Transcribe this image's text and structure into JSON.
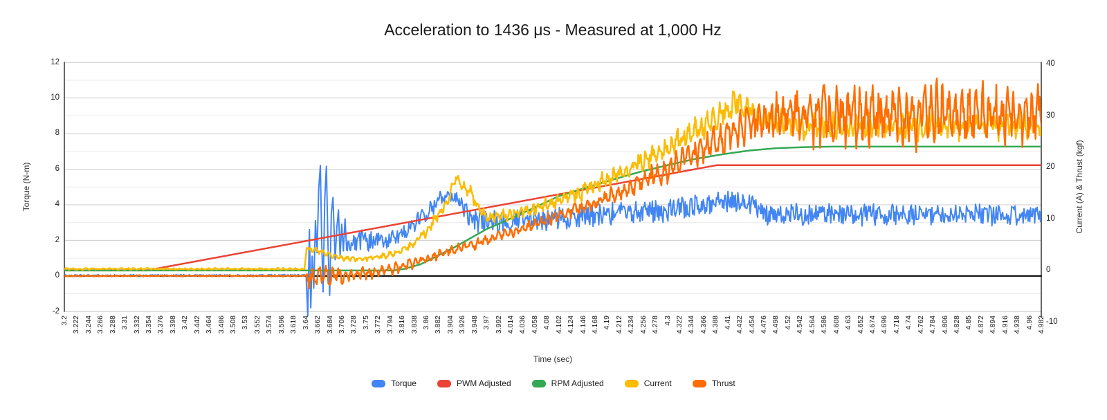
{
  "chart_data": {
    "type": "line",
    "title": "Acceleration to 1436 μs - Measured at 1,000 Hz",
    "x_axis": {
      "title": "Time (sec)",
      "min": 3.2,
      "max": 4.982,
      "tick_step": 0.022,
      "tick_labels": [
        "3.2",
        "3.222",
        "3.244",
        "3.266",
        "3.288",
        "3.31",
        "3.332",
        "3.354",
        "3.376",
        "3.398",
        "3.42",
        "3.442",
        "3.464",
        "3.486",
        "3.508",
        "3.53",
        "3.552",
        "3.574",
        "3.596",
        "3.618",
        "3.64",
        "3.662",
        "3.684",
        "3.706",
        "3.728",
        "3.75",
        "3.772",
        "3.794",
        "3.816",
        "3.838",
        "3.86",
        "3.882",
        "3.904",
        "3.926",
        "3.948",
        "3.97",
        "3.992",
        "4.014",
        "4.036",
        "4.058",
        "4.08",
        "4.102",
        "4.124",
        "4.146",
        "4.168",
        "4.19",
        "4.212",
        "4.234",
        "4.256",
        "4.278",
        "4.3",
        "4.322",
        "4.344",
        "4.366",
        "4.388",
        "4.41",
        "4.432",
        "4.454",
        "4.476",
        "4.498",
        "4.52",
        "4.542",
        "4.564",
        "4.586",
        "4.608",
        "4.63",
        "4.652",
        "4.674",
        "4.696",
        "4.718",
        "4.74",
        "4.762",
        "4.784",
        "4.806",
        "4.828",
        "4.85",
        "4.872",
        "4.894",
        "4.916",
        "4.938",
        "4.96",
        "4.982"
      ]
    },
    "left_axis": {
      "title": "Torque (N-m)",
      "min": -2,
      "max": 12,
      "ticks": [
        12,
        10,
        8,
        6,
        4,
        2,
        0,
        -2
      ],
      "tick_labels": [
        "12",
        "10",
        "8",
        "6",
        "4",
        "2",
        "0",
        "-2"
      ]
    },
    "right_axis": {
      "title": "Current (A) & Thrust (kgf)",
      "min": -10,
      "max": 40,
      "ticks": [
        40,
        30,
        20,
        10,
        0,
        -10
      ],
      "tick_labels": [
        "40",
        "30",
        "20",
        "10",
        "0",
        "-10"
      ]
    },
    "grid": {
      "major": "#cccccc",
      "minor": "#ebebeb",
      "zero_line": "#000000",
      "axis_line": "#333333",
      "minor_ticks": [
        11,
        9,
        7,
        5,
        3,
        1,
        -1
      ]
    },
    "legend_position": "bottom",
    "series": [
      {
        "name": "Torque",
        "color": "#4285F4",
        "axis": "left",
        "unit": "N-m",
        "line_width": 2,
        "waveform": {
          "freq_hz": 120,
          "periodic_mix": 0.2,
          "phase": 0.0
        },
        "seed": 11,
        "envelope": [
          [
            3.2,
            0.02,
            0.04
          ],
          [
            3.641,
            0.02,
            0.04
          ],
          [
            3.644,
            -2.25,
            0
          ],
          [
            3.647,
            2.6,
            0
          ],
          [
            3.6495,
            -1.8,
            0
          ],
          [
            3.652,
            1.1,
            0
          ],
          [
            3.655,
            -0.7,
            0
          ],
          [
            3.658,
            3.1,
            0
          ],
          [
            3.661,
            1.3,
            0
          ],
          [
            3.664,
            4.9,
            0
          ],
          [
            3.667,
            6.2,
            0
          ],
          [
            3.6695,
            1.9,
            0
          ],
          [
            3.672,
            -0.9,
            0
          ],
          [
            3.675,
            4.3,
            0
          ],
          [
            3.678,
            6.15,
            0
          ],
          [
            3.681,
            1.6,
            0
          ],
          [
            3.684,
            -1.1,
            0
          ],
          [
            3.687,
            3.5,
            0
          ],
          [
            3.69,
            4.4,
            0
          ],
          [
            3.694,
            0.9,
            0
          ],
          [
            3.697,
            2.7,
            0
          ],
          [
            3.7,
            3.7,
            0
          ],
          [
            3.703,
            1.1,
            0
          ],
          [
            3.706,
            2.9,
            0
          ],
          [
            3.709,
            1.4,
            0
          ],
          [
            3.712,
            3.2,
            0
          ],
          [
            3.715,
            1.6,
            0.3
          ],
          [
            3.73,
            2.0,
            0.5
          ],
          [
            3.78,
            1.95,
            0.5
          ],
          [
            3.82,
            2.35,
            0.5
          ],
          [
            3.86,
            3.5,
            0.45
          ],
          [
            3.885,
            4.3,
            0.35
          ],
          [
            3.905,
            4.55,
            0.3
          ],
          [
            3.92,
            4.25,
            0.35
          ],
          [
            3.937,
            3.35,
            0.45
          ],
          [
            3.952,
            3.0,
            0.5
          ],
          [
            3.97,
            3.2,
            0.5
          ],
          [
            4.0,
            3.05,
            0.55
          ],
          [
            4.05,
            3.2,
            0.55
          ],
          [
            4.1,
            3.2,
            0.55
          ],
          [
            4.15,
            3.35,
            0.5
          ],
          [
            4.2,
            3.5,
            0.5
          ],
          [
            4.25,
            3.6,
            0.55
          ],
          [
            4.3,
            3.7,
            0.55
          ],
          [
            4.35,
            3.9,
            0.5
          ],
          [
            4.4,
            4.1,
            0.5
          ],
          [
            4.44,
            4.2,
            0.5
          ],
          [
            4.47,
            3.85,
            0.5
          ],
          [
            4.49,
            3.3,
            0.6
          ],
          [
            4.52,
            3.45,
            0.5
          ],
          [
            4.6,
            3.45,
            0.5
          ],
          [
            4.7,
            3.4,
            0.5
          ],
          [
            4.8,
            3.45,
            0.45
          ],
          [
            4.9,
            3.4,
            0.5
          ],
          [
            4.982,
            3.4,
            0.45
          ]
        ]
      },
      {
        "name": "PWM Adjusted",
        "color": "#EA4335",
        "axis": "right",
        "unit": "right-axis",
        "line_width": 2.5,
        "waveform": {
          "freq_hz": 0,
          "periodic_mix": 0,
          "phase": 0
        },
        "seed": 22,
        "envelope": [
          [
            3.2,
            0,
            0
          ],
          [
            3.35,
            0,
            0
          ],
          [
            4.39,
            20.4,
            0
          ],
          [
            4.982,
            20.4,
            0
          ]
        ]
      },
      {
        "name": "RPM Adjusted",
        "color": "#34A853",
        "axis": "right",
        "unit": "right-axis",
        "line_width": 2.5,
        "waveform": {
          "freq_hz": 0,
          "periodic_mix": 0,
          "phase": 0
        },
        "seed": 33,
        "envelope": [
          [
            3.2,
            0,
            0
          ],
          [
            3.8,
            0,
            0
          ],
          [
            3.82,
            0.3,
            0
          ],
          [
            3.85,
            1.2,
            0
          ],
          [
            3.88,
            2.8,
            0
          ],
          [
            3.91,
            4.4,
            0
          ],
          [
            3.94,
            6.2,
            0
          ],
          [
            3.97,
            8.0,
            0
          ],
          [
            4.0,
            9.4,
            0
          ],
          [
            4.05,
            11.8,
            0
          ],
          [
            4.1,
            14.3,
            0
          ],
          [
            4.15,
            16.0,
            0
          ],
          [
            4.2,
            17.6,
            0
          ],
          [
            4.25,
            19.1,
            0
          ],
          [
            4.3,
            20.4,
            0
          ],
          [
            4.35,
            21.6,
            0
          ],
          [
            4.4,
            22.5,
            0
          ],
          [
            4.45,
            23.25,
            0
          ],
          [
            4.5,
            23.7,
            0
          ],
          [
            4.55,
            23.9,
            0
          ],
          [
            4.6,
            24.0,
            0
          ],
          [
            4.982,
            24.0,
            0
          ]
        ]
      },
      {
        "name": "Current",
        "color": "#FBBC04",
        "axis": "right",
        "unit": "A",
        "line_width": 2.5,
        "waveform": {
          "freq_hz": 88,
          "periodic_mix": 0.55,
          "phase": 2.1
        },
        "seed": 44,
        "envelope": [
          [
            3.2,
            0.3,
            0.18
          ],
          [
            3.638,
            0.3,
            0.18
          ],
          [
            3.642,
            4.3,
            0.4
          ],
          [
            3.67,
            3.6,
            0.5
          ],
          [
            3.69,
            2.7,
            0.5
          ],
          [
            3.72,
            2.2,
            0.5
          ],
          [
            3.76,
            2.4,
            0.55
          ],
          [
            3.8,
            3.2,
            0.6
          ],
          [
            3.83,
            4.6,
            0.7
          ],
          [
            3.86,
            7.5,
            0.9
          ],
          [
            3.88,
            10.5,
            1.0
          ],
          [
            3.9,
            13.5,
            1.1
          ],
          [
            3.914,
            18.3,
            0.9
          ],
          [
            3.928,
            15.8,
            1.2
          ],
          [
            3.942,
            14.8,
            1.4
          ],
          [
            3.956,
            12.0,
            1.2
          ],
          [
            3.97,
            10.2,
            1.0
          ],
          [
            3.99,
            10.6,
            1.1
          ],
          [
            4.02,
            11.0,
            1.2
          ],
          [
            4.06,
            12.0,
            1.3
          ],
          [
            4.1,
            13.5,
            1.4
          ],
          [
            4.15,
            15.5,
            1.6
          ],
          [
            4.2,
            18.0,
            1.8
          ],
          [
            4.25,
            21.0,
            2.0
          ],
          [
            4.3,
            24.0,
            2.2
          ],
          [
            4.35,
            27.0,
            2.4
          ],
          [
            4.4,
            30.5,
            2.6
          ],
          [
            4.43,
            33.0,
            3.0
          ],
          [
            4.46,
            30.0,
            2.6
          ],
          [
            4.5,
            28.5,
            2.6
          ],
          [
            4.55,
            28.0,
            2.6
          ],
          [
            4.7,
            28.0,
            2.6
          ],
          [
            4.85,
            28.0,
            2.6
          ],
          [
            4.982,
            28.0,
            2.6
          ]
        ]
      },
      {
        "name": "Thrust",
        "color": "#FF6D01",
        "axis": "right",
        "unit": "kgf",
        "line_width": 2.5,
        "waveform": {
          "freq_hz": 86,
          "periodic_mix": 0.62,
          "phase": 0.7
        },
        "seed": 55,
        "envelope": [
          [
            3.2,
            -1.05,
            0.12
          ],
          [
            3.641,
            -1.05,
            0.12
          ],
          [
            3.645,
            -1.3,
            2.0
          ],
          [
            3.69,
            -1.1,
            1.7
          ],
          [
            3.75,
            -0.6,
            1.3
          ],
          [
            3.8,
            0.3,
            1.1
          ],
          [
            3.85,
            1.8,
            1.05
          ],
          [
            3.9,
            3.6,
            1.0
          ],
          [
            3.95,
            5.2,
            1.0
          ],
          [
            4.0,
            6.8,
            1.0
          ],
          [
            4.05,
            8.5,
            1.1
          ],
          [
            4.1,
            10.5,
            1.2
          ],
          [
            4.15,
            12.5,
            1.35
          ],
          [
            4.2,
            14.5,
            1.6
          ],
          [
            4.25,
            17.0,
            1.9
          ],
          [
            4.3,
            19.5,
            2.3
          ],
          [
            4.35,
            22.5,
            2.7
          ],
          [
            4.4,
            25.5,
            3.1
          ],
          [
            4.44,
            28.0,
            3.6
          ],
          [
            4.48,
            29.5,
            4.2
          ],
          [
            4.53,
            30.2,
            4.8
          ],
          [
            4.6,
            30.3,
            6.3
          ],
          [
            4.7,
            30.0,
            6.6
          ],
          [
            4.8,
            30.0,
            6.0
          ],
          [
            4.9,
            30.2,
            5.5
          ],
          [
            4.982,
            30.0,
            5.5
          ]
        ]
      }
    ]
  }
}
